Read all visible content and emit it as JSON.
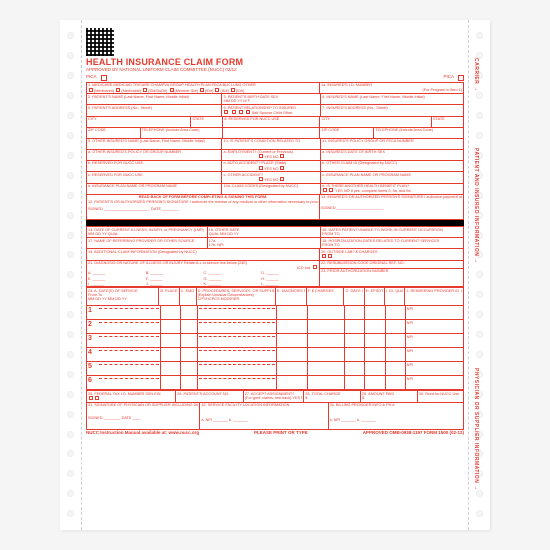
{
  "colors": {
    "ink": "#e63a2e",
    "paper": "#ffffff",
    "bg": "#f5f5f5",
    "black": "#000000"
  },
  "title": "HEALTH INSURANCE CLAIM FORM",
  "subtitle": "APPROVED BY NATIONAL UNIFORM CLAIM COMMITTEE (NUCC) 02/12",
  "pica": "PICA",
  "side_labels": {
    "carrier": "CARRIER →",
    "patient": "PATIENT AND INSURED INFORMATION →",
    "physician": "PHYSICIAN OR SUPPLIER INFORMATION →"
  },
  "section1": {
    "payers": [
      "MEDICARE",
      "MEDICAID",
      "TRICARE",
      "CHAMPVA",
      "GROUP HEALTH PLAN",
      "FECA BLK LUNG",
      "OTHER"
    ],
    "sublabels": [
      "(Medicare#)",
      "(Medicaid#)",
      "(ID#/DoD#)",
      "(Member ID#)",
      "(ID#)",
      "(ID#)",
      "(ID#)"
    ],
    "insured_id": "1a. INSURED'S I.D. NUMBER",
    "for_program": "(For Program in Item 1)"
  },
  "rows": {
    "r2": "2. PATIENT'S NAME (Last Name, First Name, Middle Initial)",
    "r3": "3. PATIENT'S BIRTH DATE          SEX",
    "r3sub": "MM    DD    YY        M      F",
    "r4": "4. INSURED'S NAME (Last Name, First Name, Middle Initial)",
    "r5": "5. PATIENT'S ADDRESS (No., Street)",
    "r6": "6. PATIENT RELATIONSHIP TO INSURED",
    "r6sub": "Self   Spouse   Child   Other",
    "r7": "7. INSURED'S ADDRESS (No., Street)",
    "city": "CITY",
    "state": "STATE",
    "r8": "8. RESERVED FOR NUCC USE",
    "zip": "ZIP CODE",
    "phone": "TELEPHONE (Include Area Code)",
    "r9": "9. OTHER INSURED'S NAME (Last Name, First Name, Middle Initial)",
    "r10": "10. IS PATIENT'S CONDITION RELATED TO:",
    "r11": "11. INSURED'S POLICY GROUP OR FECA NUMBER",
    "r9a": "a. OTHER INSURED'S POLICY OR GROUP NUMBER",
    "r10a": "a. EMPLOYMENT? (Current or Previous)",
    "yesno": "YES        NO",
    "r11a": "a. INSURED'S DATE OF BIRTH        SEX",
    "r9b": "b. RESERVED FOR NUCC USE",
    "r10b": "b. AUTO ACCIDENT?      PLACE (State)",
    "r11b": "b. OTHER CLAIM ID (Designated by NUCC)",
    "r9c": "c. RESERVED FOR NUCC USE",
    "r10c": "c. OTHER ACCIDENT?",
    "r11c": "c. INSURANCE PLAN NAME OR PROGRAM NAME",
    "r9d": "d. INSURANCE PLAN NAME OR PROGRAM NAME",
    "r10d": "10d. CLAIM CODES (Designated by NUCC)",
    "r11d": "d. IS THERE ANOTHER HEALTH BENEFIT PLAN?",
    "r11dsub": "YES    NO    If yes, complete items 9, 9a, and 9d.",
    "readback": "READ BACK OF FORM BEFORE COMPLETING & SIGNING THIS FORM.",
    "r12": "12. PATIENT'S OR AUTHORIZED PERSON'S SIGNATURE I authorize the release of any medical or other information necessary to process this claim. I also request payment of government benefits either to myself or to the party who accepts assignment below.",
    "r13": "13. INSURED'S OR AUTHORIZED PERSON'S SIGNATURE I authorize payment of medical benefits to the undersigned physician or supplier for services described below.",
    "signed": "SIGNED",
    "date": "DATE"
  },
  "mid": {
    "r14": "14. DATE OF CURRENT ILLNESS, INJURY, or PREGNANCY (LMP)",
    "mmddyy": "MM    DD    YY",
    "qual": "QUAL",
    "r15": "15. OTHER DATE",
    "r16": "16. DATES PATIENT UNABLE TO WORK IN CURRENT OCCUPATION",
    "fromto": "FROM                    TO",
    "r17": "17. NAME OF REFERRING PROVIDER OR OTHER SOURCE",
    "r17a": "17a.",
    "r17b": "17b. NPI",
    "r18": "18. HOSPITALIZATION DATES RELATED TO CURRENT SERVICES",
    "r19": "19. ADDITIONAL CLAIM INFORMATION (Designated by NUCC)",
    "r20": "20. OUTSIDE LAB?        $ CHARGES",
    "r21": "21. DIAGNOSIS OR NATURE OF ILLNESS OR INJURY Relate A-L to service line below (24E)",
    "icd": "ICD Ind.",
    "r22": "22. RESUBMISSION CODE       ORIGINAL REF. NO.",
    "r23": "23. PRIOR AUTHORIZATION NUMBER",
    "diags": [
      "A.",
      "B.",
      "C.",
      "D.",
      "E.",
      "F.",
      "G.",
      "H.",
      "I.",
      "J.",
      "K.",
      "L."
    ]
  },
  "svc": {
    "h24a": "24. A. DATE(S) OF SERVICE",
    "h24a2": "From            To",
    "h24a3": "MM DD YY   MM DD YY",
    "h24b": "B. PLACE OF SERVICE",
    "h24c": "C. EMG",
    "h24d": "D. PROCEDURES, SERVICES, OR SUPPLIES",
    "h24d2": "(Explain Unusual Circumstances)",
    "h24d3": "CPT/HCPCS          MODIFIER",
    "h24e": "E. DIAGNOSIS POINTER",
    "h24f": "F. $ CHARGES",
    "h24g": "G. DAYS OR UNITS",
    "h24h": "H. EPSDT Family Plan",
    "h24i": "I. ID. QUAL",
    "h24j": "J. RENDERING PROVIDER ID. #",
    "npi": "NPI",
    "nums": [
      "1",
      "2",
      "3",
      "4",
      "5",
      "6"
    ]
  },
  "bottom": {
    "r25": "25. FEDERAL TAX I.D. NUMBER    SSN  EIN",
    "r26": "26. PATIENT'S ACCOUNT NO.",
    "r27": "27. ACCEPT ASSIGNMENT?",
    "r27sub": "(For govt. claims, see back)  YES   NO",
    "r28": "28. TOTAL CHARGE",
    "r29": "29. AMOUNT PAID",
    "r30": "30. Rsvd for NUCC Use",
    "r31": "31. SIGNATURE OF PHYSICIAN OR SUPPLIER INCLUDING DEGREES OR CREDENTIALS (I certify that the statements on the reverse apply to this bill and are made a part thereof.)",
    "r32": "32. SERVICE FACILITY LOCATION INFORMATION",
    "r33": "33. BILLING PROVIDER INFO & PH #",
    "a": "a.",
    "b": "b.",
    "npi": "NPI",
    "signed": "SIGNED",
    "date": "DATE"
  },
  "footer": {
    "left": "NUCC Instruction Manual available at: www.nucc.org",
    "center": "PLEASE PRINT OR TYPE",
    "right": "APPROVED OMB-0938-1197 FORM 1500 (02-12)"
  }
}
